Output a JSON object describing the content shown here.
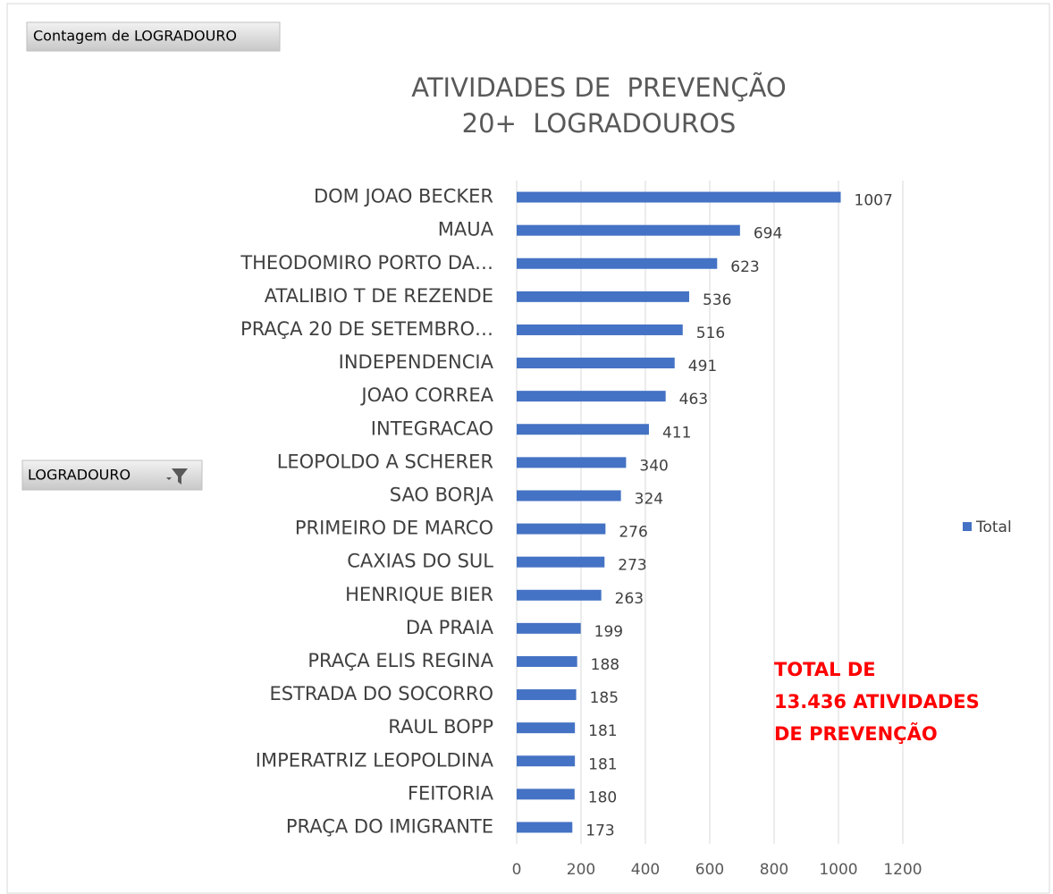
{
  "chart_data": {
    "type": "bar",
    "orientation": "horizontal",
    "title": [
      "ATIVIDADES DE  PREVENÇÃO",
      "20+  LOGRADOUROS"
    ],
    "value_field_button": "Contagem de LOGRADOURO",
    "axis_field_button": "LOGRADOURO",
    "annotation": [
      "TOTAL DE",
      "13.436 ATIVIDADES",
      "DE PREVENÇÃO"
    ],
    "categories": [
      "DOM JOAO BECKER",
      "MAUA",
      "THEODOMIRO PORTO DA…",
      "ATALIBIO T DE REZENDE",
      "PRAÇA 20 DE SETEMBRO…",
      "INDEPENDENCIA",
      "JOAO CORREA",
      "INTEGRACAO",
      "LEOPOLDO A SCHERER",
      "SAO BORJA",
      "PRIMEIRO DE MARCO",
      "CAXIAS DO SUL",
      "HENRIQUE BIER",
      "DA PRAIA",
      "PRAÇA ELIS REGINA",
      "ESTRADA DO SOCORRO",
      "RAUL BOPP",
      "IMPERATRIZ LEOPOLDINA",
      "FEITORIA",
      "PRAÇA DO IMIGRANTE"
    ],
    "series": [
      {
        "name": "Total",
        "color": "#4472c4",
        "values": [
          1007,
          694,
          623,
          536,
          516,
          491,
          463,
          411,
          340,
          324,
          276,
          273,
          263,
          199,
          188,
          185,
          181,
          181,
          180,
          173
        ]
      }
    ],
    "xlim": [
      0,
      1200
    ],
    "xticks": [
      0,
      200,
      400,
      600,
      800,
      1000,
      1200
    ],
    "grid": true,
    "legend": "right"
  }
}
